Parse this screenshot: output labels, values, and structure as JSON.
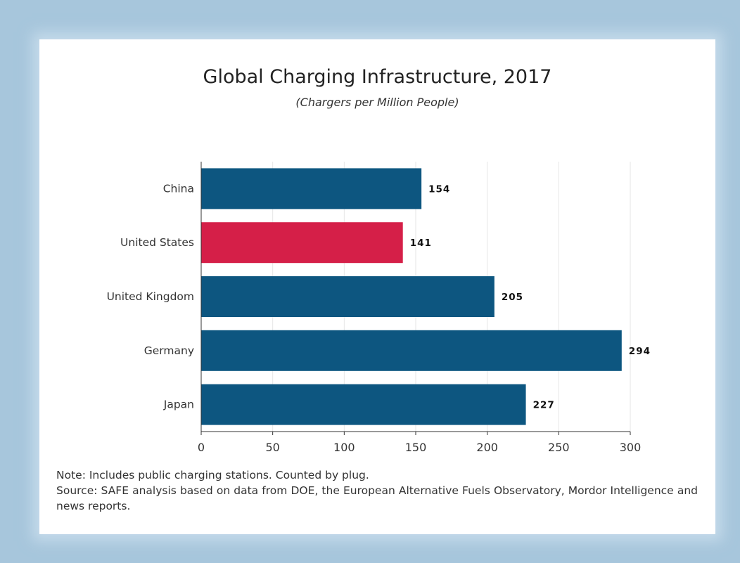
{
  "chart_data": {
    "type": "bar",
    "orientation": "horizontal",
    "title": "Global Charging Infrastructure, 2017",
    "subtitle": "(Chargers per Million People)",
    "categories": [
      "China",
      "United States",
      "United Kingdom",
      "Germany",
      "Japan"
    ],
    "values": [
      154,
      141,
      205,
      294,
      227
    ],
    "data_labels": [
      "154",
      "141",
      "205",
      "294",
      "227"
    ],
    "highlight_category": "United States",
    "colors": {
      "bar": "#0d5680",
      "highlight": "#d51f48",
      "grid": "#e6e6e6",
      "axis": "#333333"
    },
    "xlim": [
      0,
      300
    ],
    "x_ticks": [
      0,
      50,
      100,
      150,
      200,
      250,
      300
    ],
    "x_tick_labels": [
      "0",
      "50",
      "100",
      "150",
      "200",
      "250",
      "300"
    ],
    "grid": true
  },
  "notes": {
    "note": "Note: Includes public charging stations. Counted by plug.",
    "source": "Source: SAFE analysis based on data from DOE, the European Alternative Fuels Observatory, Mordor Intelligence and news reports."
  }
}
